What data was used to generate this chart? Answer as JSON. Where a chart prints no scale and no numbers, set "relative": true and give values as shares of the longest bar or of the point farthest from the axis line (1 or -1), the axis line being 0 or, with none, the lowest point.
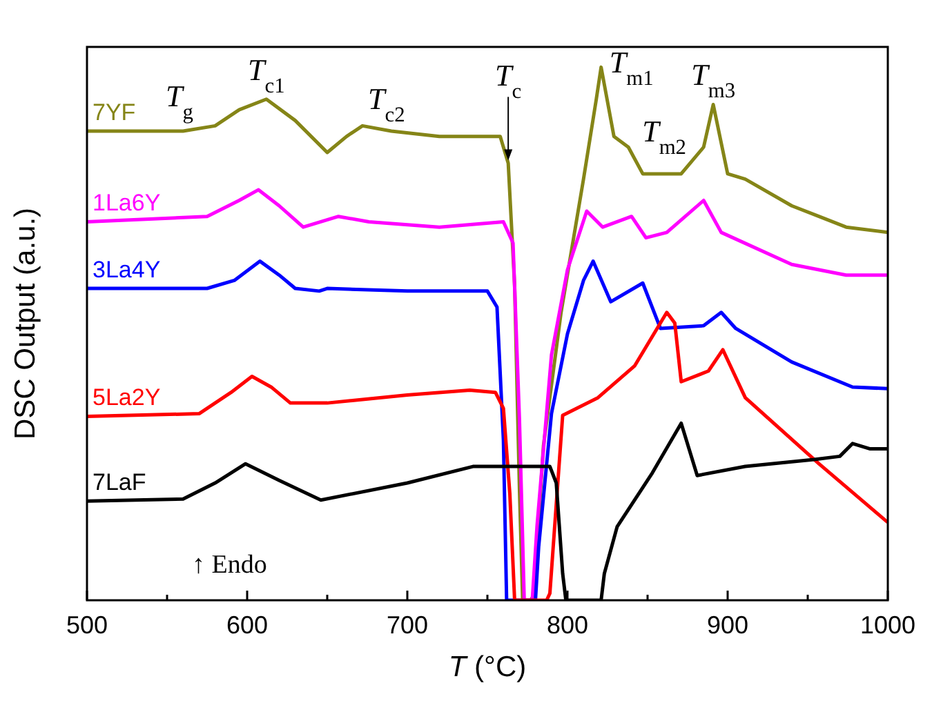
{
  "chart_data": {
    "type": "line",
    "relative": true,
    "xlabel": "T (°C)",
    "ylabel": "DSC Output (a.u.)",
    "xlim": [
      500,
      1000
    ],
    "xticks": [
      500,
      {
        "value": 550,
        "label": null
      },
      600,
      {
        "value": 650,
        "label": null
      },
      700,
      {
        "value": 750,
        "label": null
      },
      800,
      {
        "value": 850,
        "label": null
      },
      900,
      {
        "value": 950,
        "label": null
      },
      1000
    ],
    "series": [
      {
        "name": "7YF",
        "color": "#858517",
        "x": [
          500,
          560,
          580,
          595,
          612,
          630,
          650,
          662,
          672,
          690,
          720,
          750,
          758,
          763,
          767,
          770,
          772,
          777,
          779,
          785,
          796,
          810,
          818,
          821,
          829,
          838,
          847,
          871,
          885,
          891,
          900,
          911,
          940,
          957,
          974,
          1000
        ],
        "values": [
          0.88,
          0.88,
          0.89,
          0.92,
          0.94,
          0.9,
          0.84,
          0.87,
          0.89,
          0.88,
          0.87,
          0.87,
          0.87,
          0.82,
          0.59,
          0.21,
          0,
          0,
          0.01,
          0.29,
          0.54,
          0.79,
          0.94,
          1,
          0.87,
          0.85,
          0.8,
          0.8,
          0.85,
          0.93,
          0.8,
          0.79,
          0.74,
          0.72,
          0.7,
          0.69
        ]
      },
      {
        "name": "1La6Y",
        "color": "#ff00ff",
        "x": [
          500,
          575,
          595,
          607,
          620,
          635,
          657,
          676,
          720,
          760,
          766,
          770,
          773,
          778,
          781,
          790,
          800,
          812,
          822,
          840,
          849,
          862,
          885,
          896,
          940,
          974,
          1000
        ],
        "values": [
          0.71,
          0.72,
          0.75,
          0.77,
          0.74,
          0.7,
          0.72,
          0.71,
          0.7,
          0.71,
          0.67,
          0.34,
          0,
          0,
          0.14,
          0.46,
          0.62,
          0.73,
          0.7,
          0.72,
          0.68,
          0.69,
          0.75,
          0.69,
          0.63,
          0.61,
          0.61
        ]
      },
      {
        "name": "3La4Y",
        "color": "#0000ff",
        "x": [
          500,
          575,
          592,
          608,
          620,
          630,
          645,
          650,
          700,
          750,
          756,
          760,
          762,
          780,
          782,
          790,
          800,
          810,
          816,
          827,
          847,
          858,
          885,
          896,
          905,
          940,
          978,
          1000
        ],
        "values": [
          0.585,
          0.585,
          0.6,
          0.636,
          0.61,
          0.585,
          0.58,
          0.585,
          0.58,
          0.58,
          0.55,
          0.3,
          0,
          0,
          0.1,
          0.35,
          0.5,
          0.6,
          0.636,
          0.56,
          0.595,
          0.51,
          0.515,
          0.54,
          0.51,
          0.447,
          0.4,
          0.397
        ]
      },
      {
        "name": "5La2Y",
        "color": "#ff0000",
        "x": [
          500,
          570,
          590,
          603,
          615,
          627,
          650,
          700,
          739,
          755,
          760,
          764,
          767,
          787,
          789,
          797,
          819,
          842,
          862,
          867,
          871,
          888,
          897,
          911,
          957,
          1000
        ],
        "values": [
          0.345,
          0.35,
          0.39,
          0.42,
          0.4,
          0.37,
          0.37,
          0.385,
          0.394,
          0.39,
          0.36,
          0.2,
          0,
          0,
          0.013,
          0.347,
          0.38,
          0.44,
          0.54,
          0.52,
          0.41,
          0.43,
          0.47,
          0.38,
          0.256,
          0.146
        ]
      },
      {
        "name": "7LaF",
        "color": "#000000",
        "x": [
          500,
          560,
          580,
          599,
          620,
          646,
          700,
          741,
          789,
          793,
          797,
          799,
          821,
          823,
          831,
          853,
          871,
          881,
          911,
          954,
          970,
          978,
          989,
          1000
        ],
        "values": [
          0.186,
          0.19,
          0.22,
          0.256,
          0.225,
          0.188,
          0.22,
          0.251,
          0.251,
          0.22,
          0.05,
          0,
          0,
          0.05,
          0.138,
          0.239,
          0.332,
          0.234,
          0.251,
          0.264,
          0.27,
          0.294,
          0.284,
          0.284
        ]
      }
    ],
    "annotations": [
      {
        "text": "T$_{g}$",
        "x": 575,
        "y": 0.89
      },
      {
        "text": "T$_{c1}$",
        "x": 612,
        "y": 0.94
      },
      {
        "text": "T$_{c2}$",
        "x": 672,
        "y": 0.89
      },
      {
        "text": "T$_{c}$",
        "x": 763,
        "y": 0.82
      },
      {
        "text": "T$_{m1}$",
        "x": 821,
        "y": 1
      },
      {
        "text": "T$_{m2}$",
        "x": 838,
        "y": 0.85
      },
      {
        "text": "T$_{m3}$",
        "x": 891,
        "y": 0.93
      },
      "↑ Endo"
    ]
  }
}
